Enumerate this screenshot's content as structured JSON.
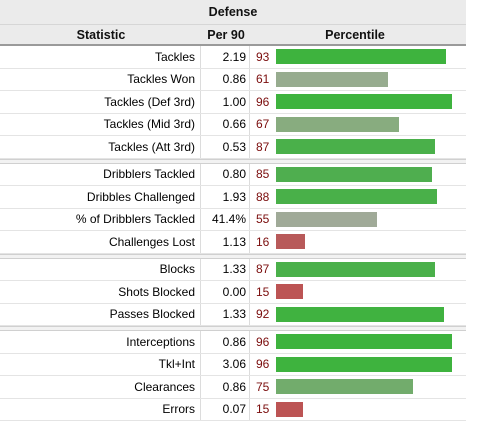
{
  "table": {
    "title": "Defense",
    "headers": {
      "statistic": "Statistic",
      "per90": "Per 90",
      "percentile": "Percentile"
    },
    "groups": [
      [
        {
          "label": "Tackles",
          "per90": "2.19",
          "percentile": "93",
          "pct_value": 93,
          "bar_color": "#3eb33e"
        },
        {
          "label": "Tackles Won",
          "per90": "0.86",
          "percentile": "61",
          "pct_value": 61,
          "bar_color": "#97ac8f"
        },
        {
          "label": "Tackles (Def 3rd)",
          "per90": "1.00",
          "percentile": "96",
          "pct_value": 96,
          "bar_color": "#3eb33e"
        },
        {
          "label": "Tackles (Mid 3rd)",
          "per90": "0.66",
          "percentile": "67",
          "pct_value": 67,
          "bar_color": "#88ac7f"
        },
        {
          "label": "Tackles (Att 3rd)",
          "per90": "0.53",
          "percentile": "87",
          "pct_value": 87,
          "bar_color": "#4ab04a"
        }
      ],
      [
        {
          "label": "Dribblers Tackled",
          "per90": "0.80",
          "percentile": "85",
          "pct_value": 85,
          "bar_color": "#4fae4f"
        },
        {
          "label": "Dribbles Challenged",
          "per90": "1.93",
          "percentile": "88",
          "pct_value": 88,
          "bar_color": "#49b049"
        },
        {
          "label": "% of Dribblers Tackled",
          "per90": "41.4%",
          "percentile": "55",
          "pct_value": 55,
          "bar_color": "#a0aa98"
        },
        {
          "label": "Challenges Lost",
          "per90": "1.13",
          "percentile": "16",
          "pct_value": 16,
          "bar_color": "#b85a5a"
        }
      ],
      [
        {
          "label": "Blocks",
          "per90": "1.33",
          "percentile": "87",
          "pct_value": 87,
          "bar_color": "#4ab04a"
        },
        {
          "label": "Shots Blocked",
          "per90": "0.00",
          "percentile": "15",
          "pct_value": 15,
          "bar_color": "#bc5454"
        },
        {
          "label": "Passes Blocked",
          "per90": "1.33",
          "percentile": "92",
          "pct_value": 92,
          "bar_color": "#40b240"
        }
      ],
      [
        {
          "label": "Interceptions",
          "per90": "0.86",
          "percentile": "96",
          "pct_value": 96,
          "bar_color": "#3eb33e"
        },
        {
          "label": "Tkl+Int",
          "per90": "3.06",
          "percentile": "96",
          "pct_value": 96,
          "bar_color": "#3eb33e"
        },
        {
          "label": "Clearances",
          "per90": "0.86",
          "percentile": "75",
          "pct_value": 75,
          "bar_color": "#72ac6c"
        },
        {
          "label": "Errors",
          "per90": "0.07",
          "percentile": "15",
          "pct_value": 15,
          "bar_color": "#bc5454"
        }
      ]
    ]
  }
}
